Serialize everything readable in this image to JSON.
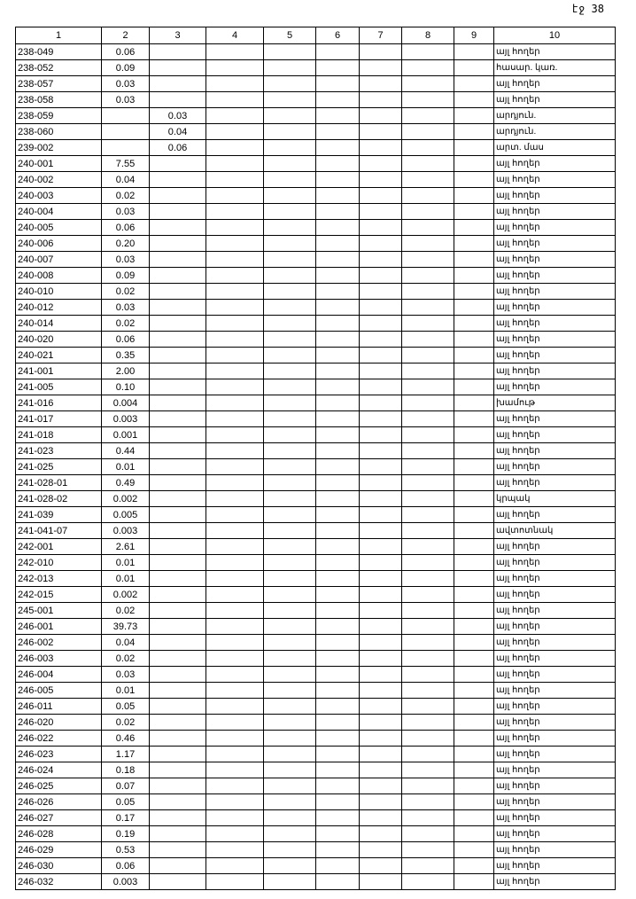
{
  "page_number": "էջ 38",
  "headers": [
    "1",
    "2",
    "3",
    "4",
    "5",
    "6",
    "7",
    "8",
    "9",
    "10"
  ],
  "rows": [
    [
      "238-049",
      "0.06",
      "",
      "",
      "",
      "",
      "",
      "",
      "",
      "այլ հողեր"
    ],
    [
      "238-052",
      "0.09",
      "",
      "",
      "",
      "",
      "",
      "",
      "",
      "հասար. կառ."
    ],
    [
      "238-057",
      "0.03",
      "",
      "",
      "",
      "",
      "",
      "",
      "",
      "այլ հողեր"
    ],
    [
      "238-058",
      "0.03",
      "",
      "",
      "",
      "",
      "",
      "",
      "",
      "այլ հողեր"
    ],
    [
      "238-059",
      "",
      "0.03",
      "",
      "",
      "",
      "",
      "",
      "",
      "արդյուն."
    ],
    [
      "238-060",
      "",
      "0.04",
      "",
      "",
      "",
      "",
      "",
      "",
      "արդյուն."
    ],
    [
      "239-002",
      "",
      "0.06",
      "",
      "",
      "",
      "",
      "",
      "",
      "արտ. մաս"
    ],
    [
      "240-001",
      "7.55",
      "",
      "",
      "",
      "",
      "",
      "",
      "",
      "այլ հողեր"
    ],
    [
      "240-002",
      "0.04",
      "",
      "",
      "",
      "",
      "",
      "",
      "",
      "այլ հողեր"
    ],
    [
      "240-003",
      "0.02",
      "",
      "",
      "",
      "",
      "",
      "",
      "",
      "այլ հողեր"
    ],
    [
      "240-004",
      "0.03",
      "",
      "",
      "",
      "",
      "",
      "",
      "",
      "այլ հողեր"
    ],
    [
      "240-005",
      "0.06",
      "",
      "",
      "",
      "",
      "",
      "",
      "",
      "այլ հողեր"
    ],
    [
      "240-006",
      "0.20",
      "",
      "",
      "",
      "",
      "",
      "",
      "",
      "այլ հողեր"
    ],
    [
      "240-007",
      "0.03",
      "",
      "",
      "",
      "",
      "",
      "",
      "",
      "այլ հողեր"
    ],
    [
      "240-008",
      "0.09",
      "",
      "",
      "",
      "",
      "",
      "",
      "",
      "այլ հողեր"
    ],
    [
      "240-010",
      "0.02",
      "",
      "",
      "",
      "",
      "",
      "",
      "",
      "այլ հողեր"
    ],
    [
      "240-012",
      "0.03",
      "",
      "",
      "",
      "",
      "",
      "",
      "",
      "այլ հողեր"
    ],
    [
      "240-014",
      "0.02",
      "",
      "",
      "",
      "",
      "",
      "",
      "",
      "այլ հողեր"
    ],
    [
      "240-020",
      "0.06",
      "",
      "",
      "",
      "",
      "",
      "",
      "",
      "այլ հողեր"
    ],
    [
      "240-021",
      "0.35",
      "",
      "",
      "",
      "",
      "",
      "",
      "",
      "այլ հողեր"
    ],
    [
      "241-001",
      "2.00",
      "",
      "",
      "",
      "",
      "",
      "",
      "",
      "այլ հողեր"
    ],
    [
      "241-005",
      "0.10",
      "",
      "",
      "",
      "",
      "",
      "",
      "",
      "այլ հողեր"
    ],
    [
      "241-016",
      "0.004",
      "",
      "",
      "",
      "",
      "",
      "",
      "",
      "խամութ"
    ],
    [
      "241-017",
      "0.003",
      "",
      "",
      "",
      "",
      "",
      "",
      "",
      "այլ հողեր"
    ],
    [
      "241-018",
      "0.001",
      "",
      "",
      "",
      "",
      "",
      "",
      "",
      "այլ հողեր"
    ],
    [
      "241-023",
      "0.44",
      "",
      "",
      "",
      "",
      "",
      "",
      "",
      "այլ հողեր"
    ],
    [
      "241-025",
      "0.01",
      "",
      "",
      "",
      "",
      "",
      "",
      "",
      "այլ հողեր"
    ],
    [
      "241-028-01",
      "0.49",
      "",
      "",
      "",
      "",
      "",
      "",
      "",
      "այլ հողեր"
    ],
    [
      "241-028-02",
      "0.002",
      "",
      "",
      "",
      "",
      "",
      "",
      "",
      "կրպակ"
    ],
    [
      "241-039",
      "0.005",
      "",
      "",
      "",
      "",
      "",
      "",
      "",
      "այլ հողեր"
    ],
    [
      "241-041-07",
      "0.003",
      "",
      "",
      "",
      "",
      "",
      "",
      "",
      "ավտոտնակ"
    ],
    [
      "242-001",
      "2.61",
      "",
      "",
      "",
      "",
      "",
      "",
      "",
      "այլ հողեր"
    ],
    [
      "242-010",
      "0.01",
      "",
      "",
      "",
      "",
      "",
      "",
      "",
      "այլ հողեր"
    ],
    [
      "242-013",
      "0.01",
      "",
      "",
      "",
      "",
      "",
      "",
      "",
      "այլ հողեր"
    ],
    [
      "242-015",
      "0.002",
      "",
      "",
      "",
      "",
      "",
      "",
      "",
      "այլ հողեր"
    ],
    [
      "245-001",
      "0.02",
      "",
      "",
      "",
      "",
      "",
      "",
      "",
      "այլ հողեր"
    ],
    [
      "246-001",
      "39.73",
      "",
      "",
      "",
      "",
      "",
      "",
      "",
      "այլ հողեր"
    ],
    [
      "246-002",
      "0.04",
      "",
      "",
      "",
      "",
      "",
      "",
      "",
      "այլ հողեր"
    ],
    [
      "246-003",
      "0.02",
      "",
      "",
      "",
      "",
      "",
      "",
      "",
      "այլ հողեր"
    ],
    [
      "246-004",
      "0.03",
      "",
      "",
      "",
      "",
      "",
      "",
      "",
      "այլ հողեր"
    ],
    [
      "246-005",
      "0.01",
      "",
      "",
      "",
      "",
      "",
      "",
      "",
      "այլ հողեր"
    ],
    [
      "246-011",
      "0.05",
      "",
      "",
      "",
      "",
      "",
      "",
      "",
      "այլ հողեր"
    ],
    [
      "246-020",
      "0.02",
      "",
      "",
      "",
      "",
      "",
      "",
      "",
      "այլ հողեր"
    ],
    [
      "246-022",
      "0.46",
      "",
      "",
      "",
      "",
      "",
      "",
      "",
      "այլ հողեր"
    ],
    [
      "246-023",
      "1.17",
      "",
      "",
      "",
      "",
      "",
      "",
      "",
      "այլ հողեր"
    ],
    [
      "246-024",
      "0.18",
      "",
      "",
      "",
      "",
      "",
      "",
      "",
      "այլ հողեր"
    ],
    [
      "246-025",
      "0.07",
      "",
      "",
      "",
      "",
      "",
      "",
      "",
      "այլ հողեր"
    ],
    [
      "246-026",
      "0.05",
      "",
      "",
      "",
      "",
      "",
      "",
      "",
      "այլ հողեր"
    ],
    [
      "246-027",
      "0.17",
      "",
      "",
      "",
      "",
      "",
      "",
      "",
      "այլ հողեր"
    ],
    [
      "246-028",
      "0.19",
      "",
      "",
      "",
      "",
      "",
      "",
      "",
      "այլ հողեր"
    ],
    [
      "246-029",
      "0.53",
      "",
      "",
      "",
      "",
      "",
      "",
      "",
      "այլ հողեր"
    ],
    [
      "246-030",
      "0.06",
      "",
      "",
      "",
      "",
      "",
      "",
      "",
      "այլ հողեր"
    ],
    [
      "246-032",
      "0.003",
      "",
      "",
      "",
      "",
      "",
      "",
      "",
      "այլ հողեր"
    ]
  ]
}
